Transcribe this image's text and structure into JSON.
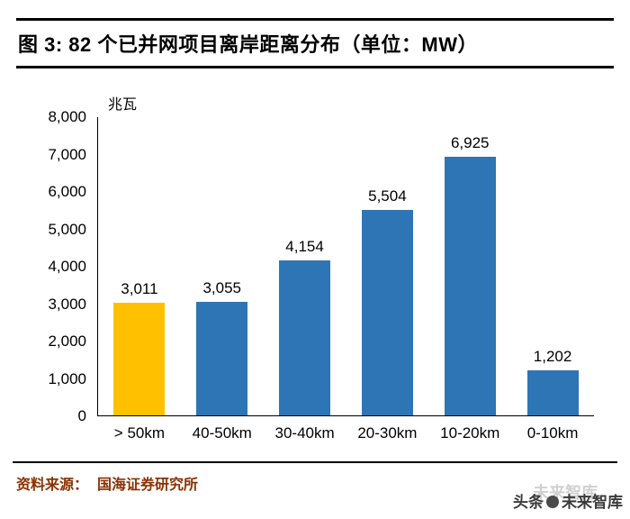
{
  "header": {
    "title": "图 3:  82 个已并网项目离岸距离分布（单位：MW）"
  },
  "chart_data": {
    "type": "bar",
    "title": "82 个已并网项目离岸距离分布",
    "unit": "MW",
    "ylabel": "兆瓦",
    "xlabel": "",
    "categories": [
      "> 50km",
      "40-50km",
      "30-40km",
      "20-30km",
      "10-20km",
      "0-10km"
    ],
    "values": [
      3011,
      3055,
      4154,
      5504,
      6925,
      1202
    ],
    "value_labels": [
      "3,011",
      "3,055",
      "4,154",
      "5,504",
      "6,925",
      "1,202"
    ],
    "bar_colors": [
      "#FFC000",
      "#2E75B6",
      "#2E75B6",
      "#2E75B6",
      "#2E75B6",
      "#2E75B6"
    ],
    "ylim": [
      0,
      8000
    ],
    "ytick_interval": 1000,
    "ytick_labels": [
      "0",
      "1,000",
      "2,000",
      "3,000",
      "4,000",
      "5,000",
      "6,000",
      "7,000",
      "8,000"
    ],
    "grid": false,
    "legend_position": "none"
  },
  "footer": {
    "source_label": "资料来源：",
    "source_value": "国海证券研究所"
  },
  "watermark": {
    "prefix": "头条",
    "name": "未来智库",
    "ghost": "未来智库"
  },
  "colors": {
    "bar_blue": "#2E75B6",
    "bar_orange": "#FFC000",
    "source_text": "#8B3103",
    "axis": "#000000"
  }
}
